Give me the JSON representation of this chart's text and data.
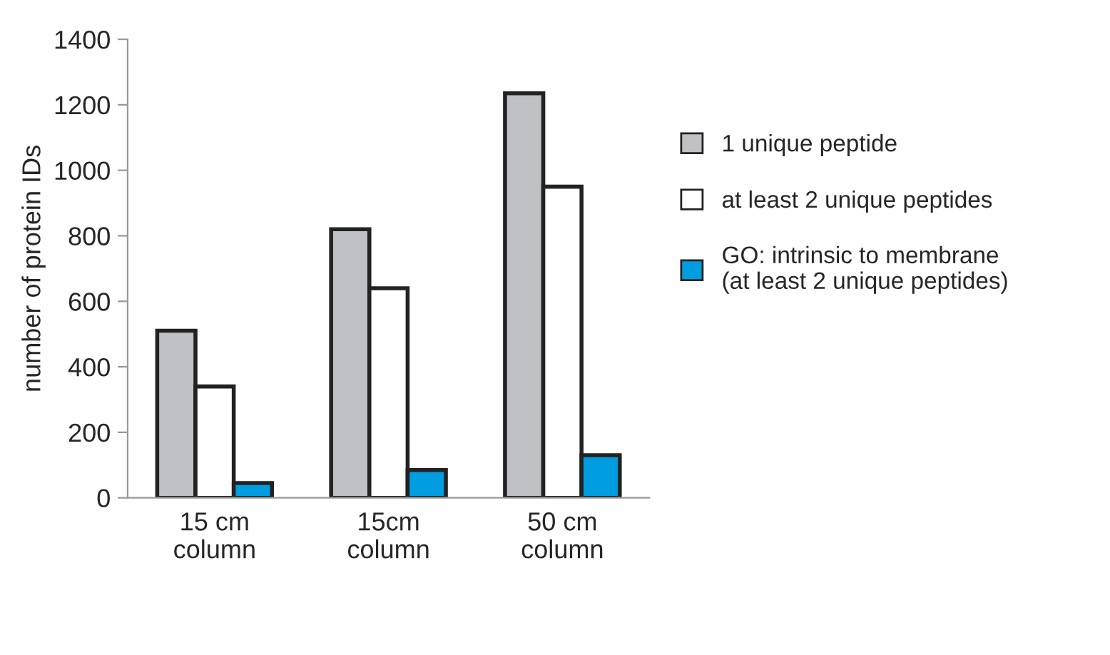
{
  "chart_data": {
    "type": "bar",
    "ylabel": "number of protein IDs",
    "categories": [
      "15 cm\ncolumn",
      "15cm\ncolumn",
      "50 cm\ncolumn"
    ],
    "series": [
      {
        "name": "1 unique peptide",
        "color": "#c0c1c4",
        "values": [
          510,
          820,
          1235
        ]
      },
      {
        "name": "at least 2 unique peptides",
        "color": "#ffffff",
        "values": [
          340,
          640,
          950
        ]
      },
      {
        "name": "GO: intrinsic to membrane\n(at least 2 unique peptides)",
        "color": "#009ee0",
        "values": [
          45,
          85,
          130
        ]
      }
    ],
    "ylim": [
      0,
      1400
    ],
    "yticks": [
      0,
      200,
      400,
      600,
      800,
      1000,
      1200,
      1400
    ],
    "grid": false,
    "legend": "right"
  }
}
